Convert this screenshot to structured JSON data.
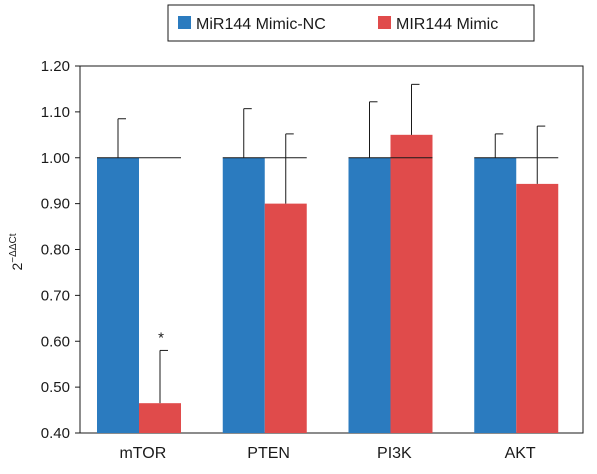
{
  "chart_data": {
    "type": "bar",
    "title": "",
    "xlabel": "",
    "ylabel": {
      "base": "2",
      "exponent": "−ΔΔCt"
    },
    "ylim": [
      0.4,
      1.2
    ],
    "yticks": [
      "0.40",
      "0.50",
      "0.60",
      "0.70",
      "0.80",
      "0.90",
      "1.00",
      "1.10",
      "1.20"
    ],
    "ytick_values": [
      0.4,
      0.5,
      0.6,
      0.7,
      0.8,
      0.9,
      1.0,
      1.1,
      1.2
    ],
    "grid": false,
    "reference_line": 1.0,
    "legend_position": "top-center",
    "categories": [
      "mTOR",
      "PTEN",
      "PI3K",
      "AKT"
    ],
    "series": [
      {
        "name": "MiR144 Mimic-NC",
        "color": "#2b7bbf",
        "values": [
          1.0,
          1.0,
          1.0,
          1.0
        ],
        "errors": [
          0.085,
          0.107,
          0.122,
          0.052
        ]
      },
      {
        "name": "MIR144 Mimic",
        "color": "#e04b4b",
        "values": [
          0.465,
          0.9,
          1.05,
          0.943
        ],
        "errors": [
          0.115,
          0.152,
          0.11,
          0.126
        ]
      }
    ],
    "annotations": [
      {
        "text": "*",
        "category": "mTOR",
        "series": 1
      }
    ]
  }
}
